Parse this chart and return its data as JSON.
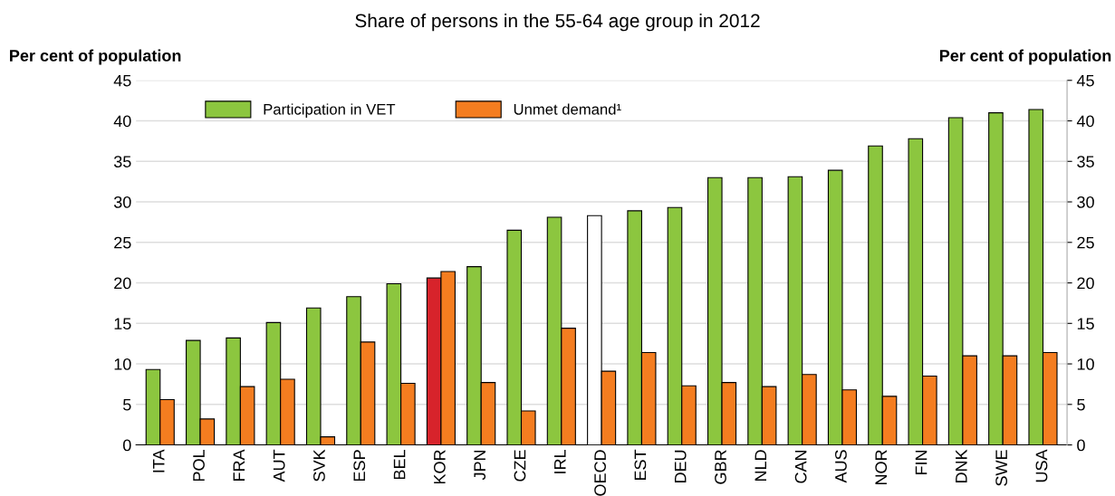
{
  "chart_data": {
    "type": "bar",
    "title": "Share of persons in the 55-64 age group in 2012",
    "ylabel": "Per cent of population",
    "y2label": "Per cent of population",
    "categories": [
      "ITA",
      "POL",
      "FRA",
      "AUT",
      "SVK",
      "ESP",
      "BEL",
      "KOR",
      "JPN",
      "CZE",
      "IRL",
      "OECD",
      "EST",
      "DEU",
      "GBR",
      "NLD",
      "CAN",
      "AUS",
      "NOR",
      "FIN",
      "DNK",
      "SWE",
      "USA"
    ],
    "series": [
      {
        "name": "Participation in VET",
        "color": "#8cc63f",
        "colors": [
          "#8cc63f",
          "#8cc63f",
          "#8cc63f",
          "#8cc63f",
          "#8cc63f",
          "#8cc63f",
          "#8cc63f",
          "#d7232b",
          "#8cc63f",
          "#8cc63f",
          "#8cc63f",
          "#ffffff",
          "#8cc63f",
          "#8cc63f",
          "#8cc63f",
          "#8cc63f",
          "#8cc63f",
          "#8cc63f",
          "#8cc63f",
          "#8cc63f",
          "#8cc63f",
          "#8cc63f",
          "#8cc63f"
        ],
        "values": [
          9.3,
          12.9,
          13.2,
          15.1,
          16.9,
          18.3,
          19.9,
          20.6,
          22.0,
          26.5,
          28.1,
          28.3,
          28.9,
          29.3,
          33.0,
          33.0,
          33.1,
          33.9,
          36.9,
          37.8,
          40.4,
          41.0,
          41.4
        ]
      },
      {
        "name": "Unmet demand¹",
        "color": "#f47d20",
        "values": [
          5.6,
          3.2,
          7.2,
          8.1,
          1.0,
          12.7,
          7.6,
          21.4,
          7.7,
          4.2,
          14.4,
          9.1,
          11.4,
          7.3,
          7.7,
          7.2,
          8.7,
          6.8,
          6.0,
          8.5,
          11.0,
          11.0,
          11.4
        ]
      }
    ],
    "ylim": [
      0,
      45
    ],
    "yticks": [
      0,
      5,
      10,
      15,
      20,
      25,
      30,
      35,
      40,
      45
    ],
    "y2lim": [
      0,
      45
    ],
    "y2ticks": [
      0,
      5,
      10,
      15,
      20,
      25,
      30,
      35,
      40,
      45
    ],
    "grid": "y",
    "legend": "top left"
  }
}
